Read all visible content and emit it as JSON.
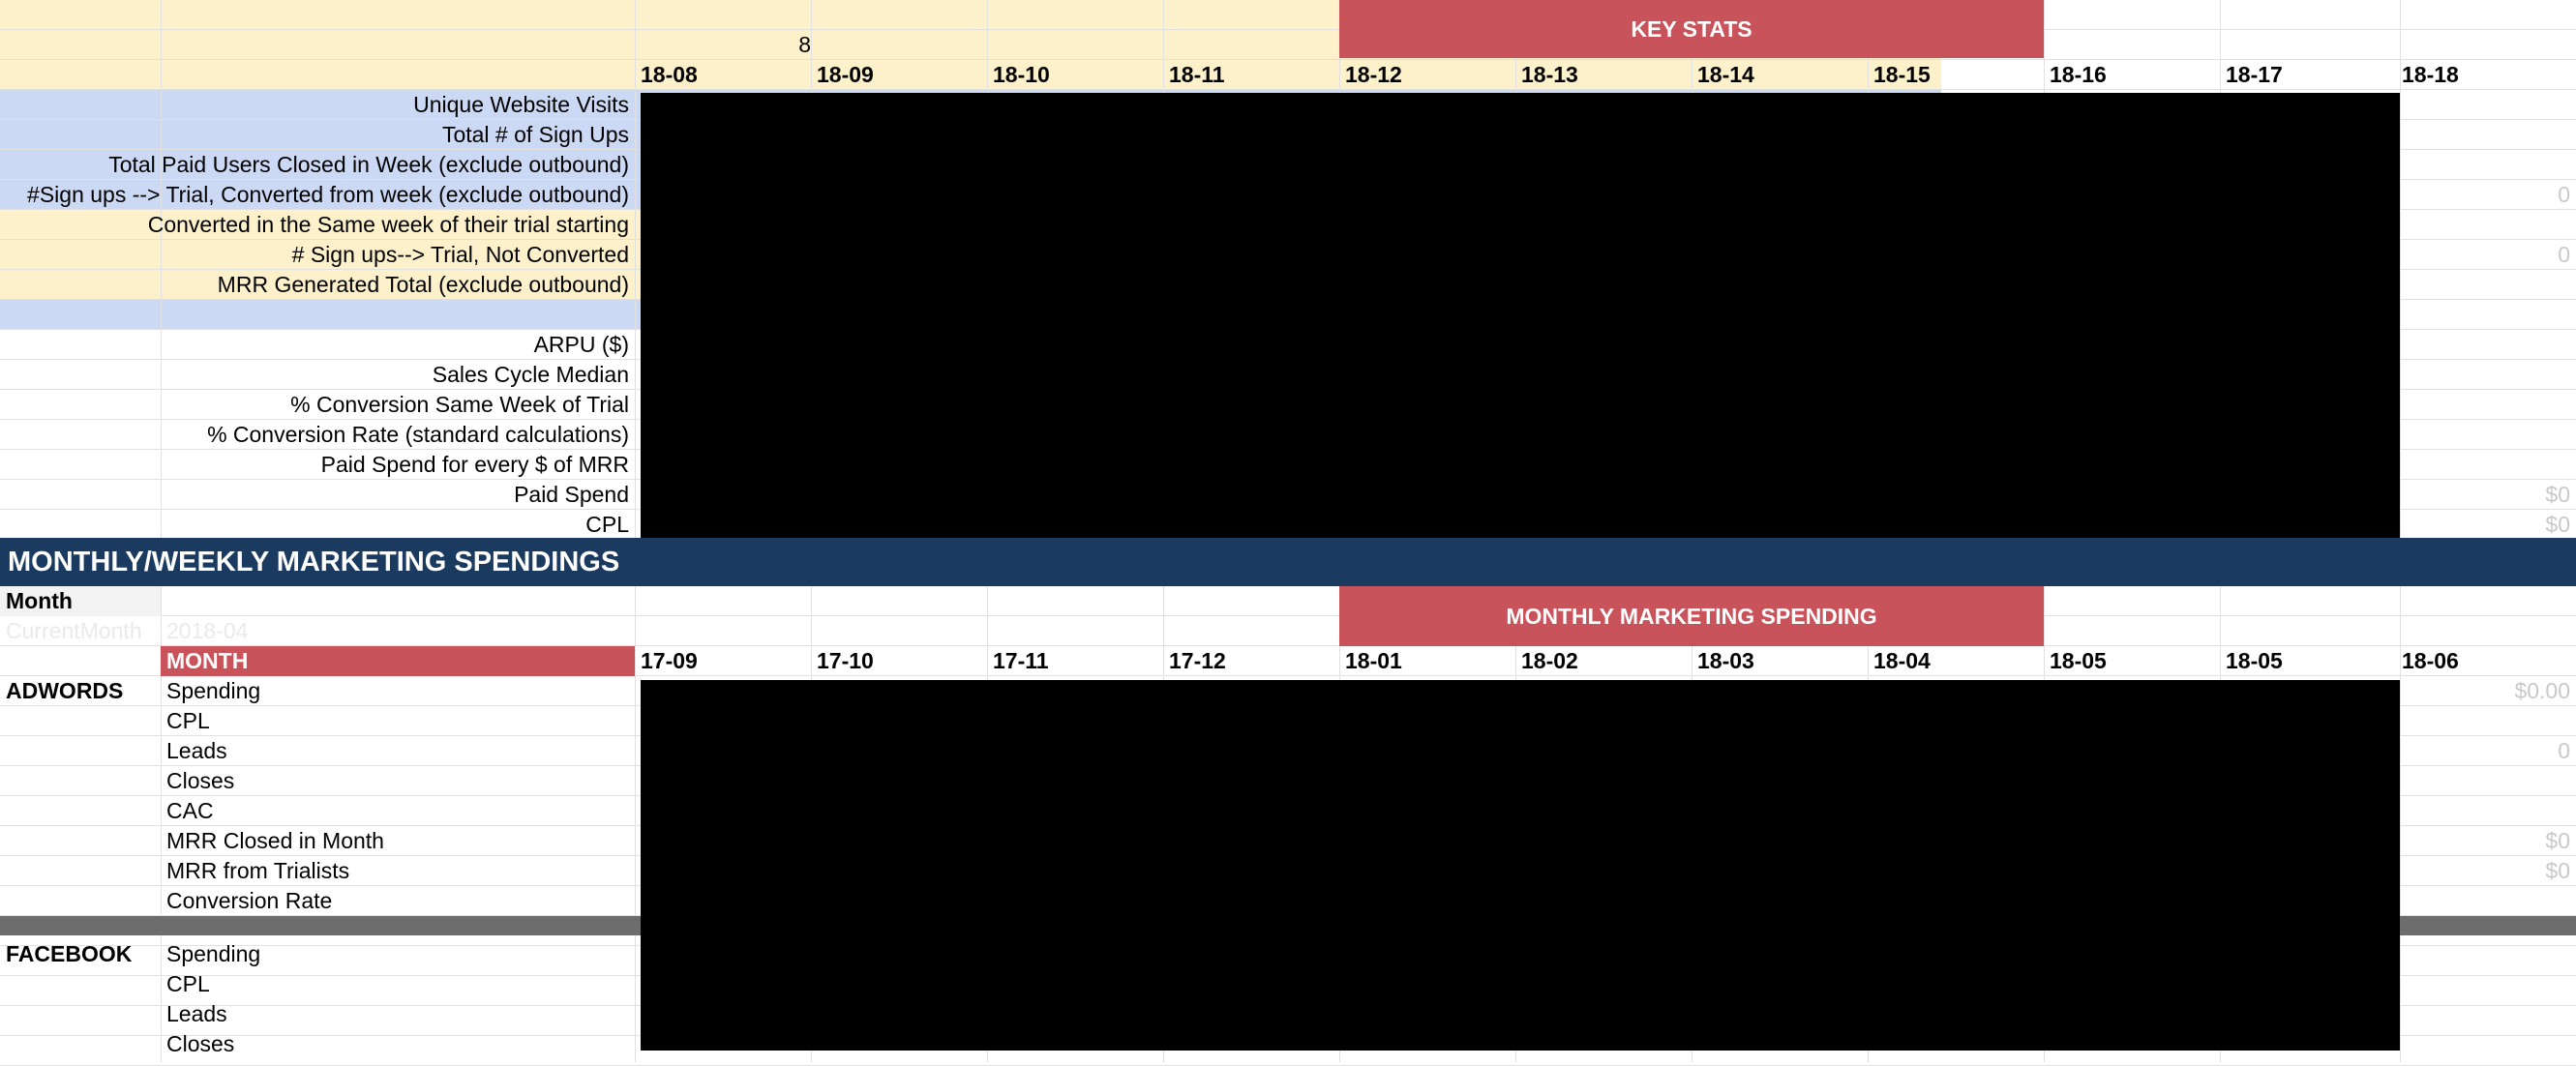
{
  "key_stats": {
    "title": "KEY STATS",
    "week_marker": "8",
    "weeks": [
      "18-08",
      "18-09",
      "18-10",
      "18-11",
      "18-12",
      "18-13",
      "18-14",
      "18-15",
      "18-16",
      "18-17",
      "18-18"
    ],
    "rows": [
      {
        "label": "Unique Website Visits",
        "last": ""
      },
      {
        "label": "Total # of Sign Ups",
        "last": ""
      },
      {
        "label": "Total Paid Users Closed in Week (exclude outbound)",
        "last": ""
      },
      {
        "label": "#Sign ups --> Trial, Converted from week (exclude outbound)",
        "last": "0"
      },
      {
        "label": "Converted in the Same week of their trial starting",
        "last": ""
      },
      {
        "label": "# Sign ups--> Trial, Not Converted",
        "last": "0"
      },
      {
        "label": "MRR Generated Total (exclude outbound)",
        "last": ""
      },
      {
        "label": "",
        "last": ""
      },
      {
        "label": "ARPU ($)",
        "last": ""
      },
      {
        "label": "Sales Cycle Median",
        "last": ""
      },
      {
        "label": "% Conversion Same Week of Trial",
        "last": ""
      },
      {
        "label": "% Conversion Rate (standard calculations)",
        "last": ""
      },
      {
        "label": "Paid Spend for every $ of MRR",
        "last": ""
      },
      {
        "label": "Paid Spend",
        "last": "$0"
      },
      {
        "label": "CPL",
        "last": "$0"
      }
    ]
  },
  "marketing": {
    "banner": "MONTHLY/WEEKLY MARKETING SPENDINGS",
    "month_label": "Month",
    "current_month_label": "CurrentMonth",
    "current_month_value": "2018-04",
    "monthly_title": "MONTHLY MARKETING SPENDING",
    "month_header": "MONTH",
    "months": [
      "17-09",
      "17-10",
      "17-11",
      "17-12",
      "18-01",
      "18-02",
      "18-03",
      "18-04",
      "18-05",
      "18-05",
      "18-06"
    ],
    "adwords": {
      "channel": "ADWORDS",
      "rows": [
        {
          "label": "Spending",
          "last": "$0.00",
          "fill": "yellow"
        },
        {
          "label": "CPL",
          "last": "",
          "fill": "yellow"
        },
        {
          "label": "Leads",
          "last": "0",
          "fill": "yellow"
        },
        {
          "label": "Closes",
          "last": "",
          "fill": "blue"
        },
        {
          "label": "CAC",
          "last": "",
          "fill": "none"
        },
        {
          "label": "MRR Closed in Month",
          "last": "$0",
          "fill": "blue"
        },
        {
          "label": "MRR  from Trialists",
          "last": "$0",
          "fill": "blue"
        },
        {
          "label": "Conversion Rate",
          "last": "",
          "fill": "blue"
        }
      ]
    },
    "facebook": {
      "channel": "FACEBOOK",
      "rows": [
        {
          "label": "Spending",
          "last": "",
          "fill": "yellow"
        },
        {
          "label": "CPL",
          "last": "",
          "fill": "yellow"
        },
        {
          "label": "Leads",
          "last": "",
          "fill": "yellow"
        },
        {
          "label": "Closes",
          "last": "",
          "fill": "blue"
        }
      ]
    }
  }
}
